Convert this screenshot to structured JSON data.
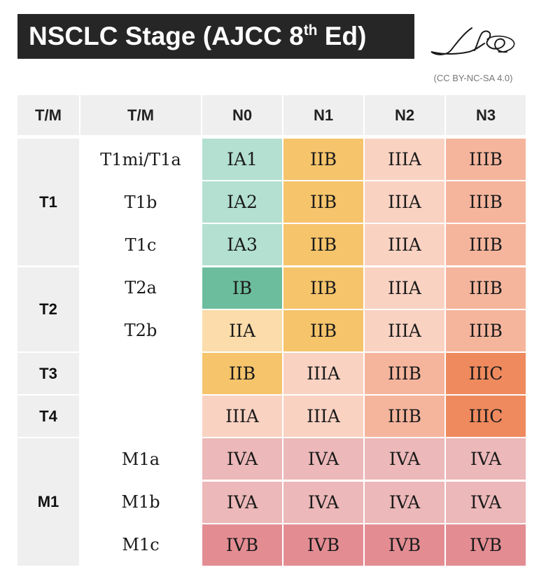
{
  "title": {
    "main": "NSCLC Stage (AJCC 8",
    "sup": "th",
    "tail": " Ed)"
  },
  "license": "(CC BY-NC-SA 4.0)",
  "header": [
    "T/M",
    "T/M",
    "N0",
    "N1",
    "N2",
    "N3"
  ],
  "groups": [
    {
      "label": "T1",
      "rows": 3
    },
    {
      "label": "T2",
      "rows": 2
    },
    {
      "label": "T3",
      "rows": 1
    },
    {
      "label": "T4",
      "rows": 1
    },
    {
      "label": "M1",
      "rows": 3
    }
  ],
  "rows": [
    {
      "label": "T1mi/T1a",
      "cells": [
        "IA1",
        "IIB",
        "IIIA",
        "IIIB"
      ]
    },
    {
      "label": "T1b",
      "cells": [
        "IA2",
        "IIB",
        "IIIA",
        "IIIB"
      ]
    },
    {
      "label": "T1c",
      "cells": [
        "IA3",
        "IIB",
        "IIIA",
        "IIIB"
      ]
    },
    {
      "label": "T2a",
      "cells": [
        "IB",
        "IIB",
        "IIIA",
        "IIIB"
      ]
    },
    {
      "label": "T2b",
      "cells": [
        "IIA",
        "IIB",
        "IIIA",
        "IIIB"
      ]
    },
    {
      "label": "",
      "cells": [
        "IIB",
        "IIIA",
        "IIIB",
        "IIIC"
      ]
    },
    {
      "label": "",
      "cells": [
        "IIIA",
        "IIIA",
        "IIIB",
        "IIIC"
      ]
    },
    {
      "label": "M1a",
      "cells": [
        "IVA",
        "IVA",
        "IVA",
        "IVA"
      ]
    },
    {
      "label": "M1b",
      "cells": [
        "IVA",
        "IVA",
        "IVA",
        "IVA"
      ]
    },
    {
      "label": "M1c",
      "cells": [
        "IVB",
        "IVB",
        "IVB",
        "IVB"
      ]
    }
  ],
  "stage_colors": {
    "IA1": "#b3e0d0",
    "IA2": "#b3e0d0",
    "IA3": "#b3e0d0",
    "IB": "#6cbd9e",
    "IIA": "#fbdcaa",
    "IIB": "#f5c46b",
    "IIIA": "#f9d2c2",
    "IIIB": "#f5b59d",
    "IIIC": "#ef8a5e",
    "IVA": "#ecb8b9",
    "IVB": "#e38d93"
  }
}
